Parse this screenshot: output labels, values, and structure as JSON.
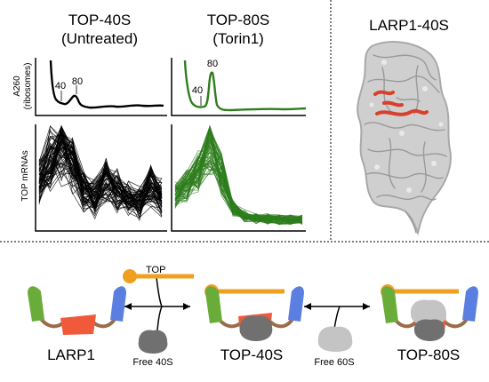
{
  "panel_top40s": {
    "title_line1": "TOP-40S",
    "title_line2": "(Untreated)",
    "peak_40": "40",
    "peak_80": "80",
    "color": "#000000"
  },
  "panel_top80s": {
    "title_line1": "TOP-80S",
    "title_line2": "(Torin1)",
    "peak_40": "40",
    "peak_80": "80",
    "color": "#2e7d1e"
  },
  "axis_labels": {
    "a260_line1": "A260",
    "a260_line2": "(ribosomes)",
    "top_mrnas": "TOP mRNAs"
  },
  "structure_panel": {
    "title": "LARP1-40S",
    "ribosome_color": "#c8c8c8",
    "larp1_color": "#d9402b"
  },
  "scheme": {
    "state1_label": "LARP1",
    "state2_label": "TOP-40S",
    "state3_label": "TOP-80S",
    "reagent_top": "TOP",
    "reagent_40s": "Free 40S",
    "reagent_60s": "Free 60S",
    "colors": {
      "green_domain": "#6aac3a",
      "blue_domain": "#5b7fe0",
      "red_domain": "#f05a3a",
      "linker": "#9c6b4a",
      "top_mrna": "#f0a020",
      "subunit_40s": "#707070",
      "subunit_60s": "#c4c4c4"
    }
  }
}
